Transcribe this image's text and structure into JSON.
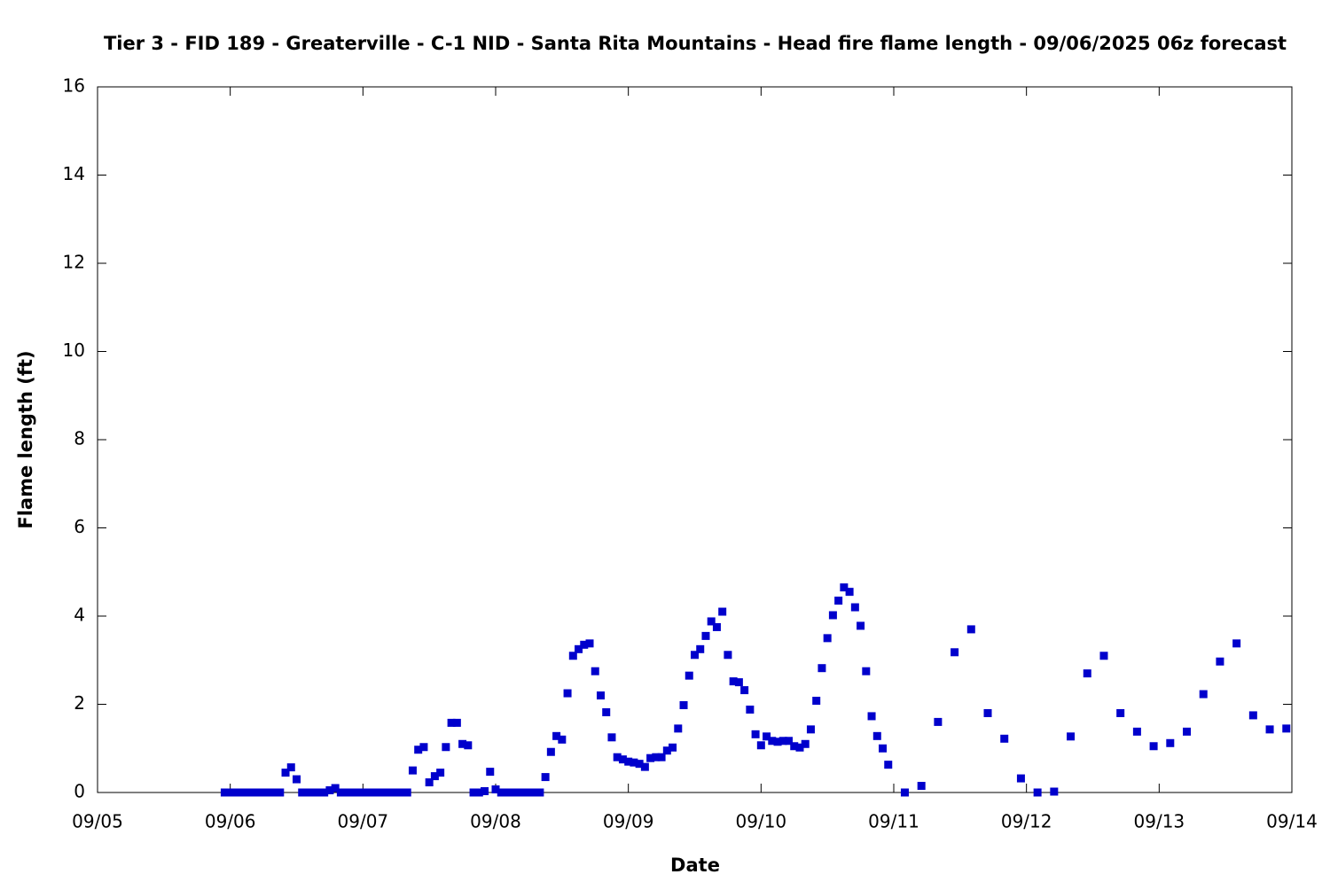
{
  "chart_data": {
    "type": "scatter",
    "title": "Tier 3 - FID 189 - Greaterville - C-1 NID - Santa Rita Mountains - Head fire flame length - 09/06/2025 06z forecast",
    "x_label": "Date",
    "y_label": "Flame length (ft)",
    "color": "#0000cc",
    "grid": false,
    "xlim": [
      0,
      216
    ],
    "ylim": [
      0,
      16
    ],
    "xticks": [
      {
        "value": 0,
        "label": "09/05"
      },
      {
        "value": 24,
        "label": "09/06"
      },
      {
        "value": 48,
        "label": "09/07"
      },
      {
        "value": 72,
        "label": "09/08"
      },
      {
        "value": 96,
        "label": "09/09"
      },
      {
        "value": 120,
        "label": "09/10"
      },
      {
        "value": 144,
        "label": "09/11"
      },
      {
        "value": 168,
        "label": "09/12"
      },
      {
        "value": 192,
        "label": "09/13"
      },
      {
        "value": 216,
        "label": "09/14"
      }
    ],
    "yticks": [
      0,
      2,
      4,
      6,
      8,
      10,
      12,
      14,
      16
    ],
    "x": [
      23,
      24,
      25,
      26,
      27,
      28,
      29,
      30,
      31,
      32,
      33,
      34,
      35,
      36,
      37,
      38,
      39,
      40,
      41,
      42,
      43,
      44,
      45,
      46,
      47,
      48,
      49,
      50,
      51,
      52,
      53,
      54,
      55,
      56,
      57,
      58,
      59,
      60,
      61,
      62,
      63,
      64,
      65,
      66,
      67,
      68,
      69,
      70,
      71,
      72,
      73,
      74,
      75,
      76,
      77,
      78,
      79,
      80,
      81,
      82,
      83,
      84,
      85,
      86,
      87,
      88,
      89,
      90,
      91,
      92,
      93,
      94,
      95,
      96,
      97,
      98,
      99,
      100,
      101,
      102,
      103,
      104,
      105,
      106,
      107,
      108,
      109,
      110,
      111,
      112,
      113,
      114,
      115,
      116,
      117,
      118,
      119,
      120,
      121,
      122,
      123,
      124,
      125,
      126,
      127,
      128,
      129,
      130,
      131,
      132,
      133,
      134,
      135,
      136,
      137,
      138,
      139,
      140,
      141,
      142,
      143,
      146,
      149,
      152,
      155,
      158,
      161,
      164,
      167,
      170,
      173,
      176,
      179,
      182,
      185,
      188,
      191,
      194,
      197,
      200,
      203,
      206,
      209,
      212,
      215
    ],
    "values": [
      0,
      0,
      0,
      0,
      0,
      0,
      0,
      0,
      0,
      0,
      0,
      0.45,
      0.57,
      0.3,
      0,
      0,
      0,
      0,
      0,
      0.05,
      0.1,
      0,
      0,
      0,
      0,
      0,
      0,
      0,
      0,
      0,
      0,
      0,
      0,
      0,
      0.5,
      0.97,
      1.03,
      0.23,
      0.37,
      0.45,
      1.03,
      1.58,
      1.58,
      1.1,
      1.07,
      0,
      0,
      0.03,
      0.47,
      0.07,
      0,
      0,
      0,
      0,
      0,
      0,
      0,
      0,
      0.35,
      0.92,
      1.28,
      1.2,
      2.25,
      3.1,
      3.25,
      3.35,
      3.38,
      2.75,
      2.2,
      1.82,
      1.25,
      0.8,
      0.75,
      0.7,
      0.68,
      0.65,
      0.58,
      0.78,
      0.8,
      0.8,
      0.95,
      1.02,
      1.45,
      1.98,
      2.65,
      3.12,
      3.25,
      3.55,
      3.88,
      3.75,
      4.1,
      3.12,
      2.52,
      2.5,
      2.32,
      1.88,
      1.32,
      1.07,
      1.27,
      1.17,
      1.15,
      1.17,
      1.17,
      1.05,
      1.02,
      1.1,
      1.43,
      2.08,
      2.82,
      3.5,
      4.02,
      4.35,
      4.65,
      4.55,
      4.2,
      3.78,
      2.75,
      1.73,
      1.28,
      1.0,
      0.63,
      0,
      0.15,
      1.6,
      3.18,
      3.7,
      1.8,
      1.22,
      0.32,
      0,
      0.02,
      1.27,
      2.7,
      3.1,
      1.8,
      1.38,
      1.05,
      1.12,
      1.38,
      2.23,
      2.97,
      3.38,
      1.75,
      1.43,
      1.45
    ]
  }
}
